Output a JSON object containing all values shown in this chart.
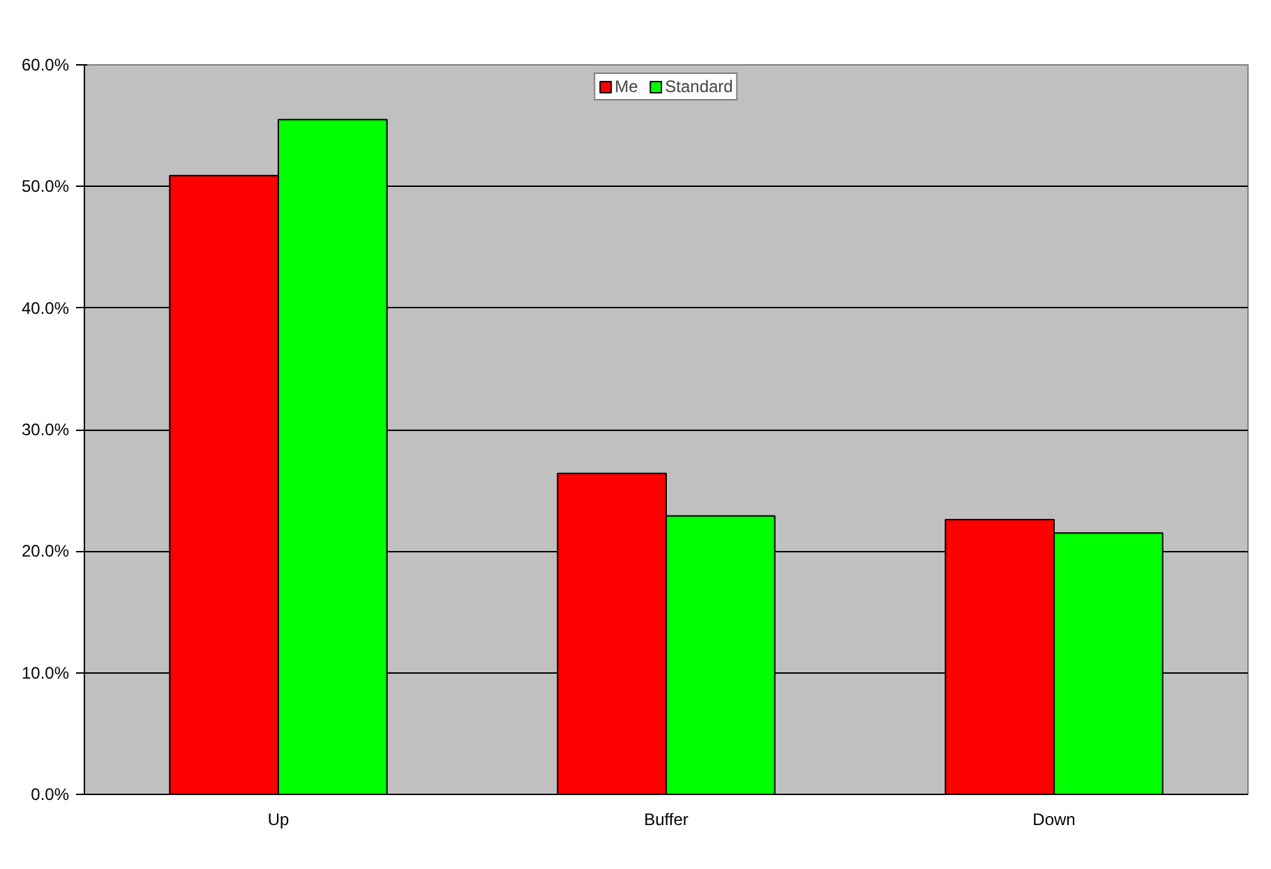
{
  "chart_data": {
    "type": "bar",
    "categories": [
      "Up",
      "Buffer",
      "Down"
    ],
    "series": [
      {
        "name": "Me",
        "color": "#ff0000",
        "values": [
          50.9,
          26.4,
          22.6
        ]
      },
      {
        "name": "Standard",
        "color": "#00ff00",
        "values": [
          55.5,
          22.9,
          21.5
        ]
      }
    ],
    "ylim": [
      0,
      60
    ],
    "yticks": [
      {
        "value": 0,
        "label": "0.0%"
      },
      {
        "value": 10,
        "label": "10.0%"
      },
      {
        "value": 20,
        "label": "20.0%"
      },
      {
        "value": 30,
        "label": "30.0%"
      },
      {
        "value": 40,
        "label": "40.0%"
      },
      {
        "value": 50,
        "label": "50.0%"
      },
      {
        "value": 60,
        "label": "60.0%"
      }
    ],
    "grid": "y",
    "legend": "top"
  }
}
